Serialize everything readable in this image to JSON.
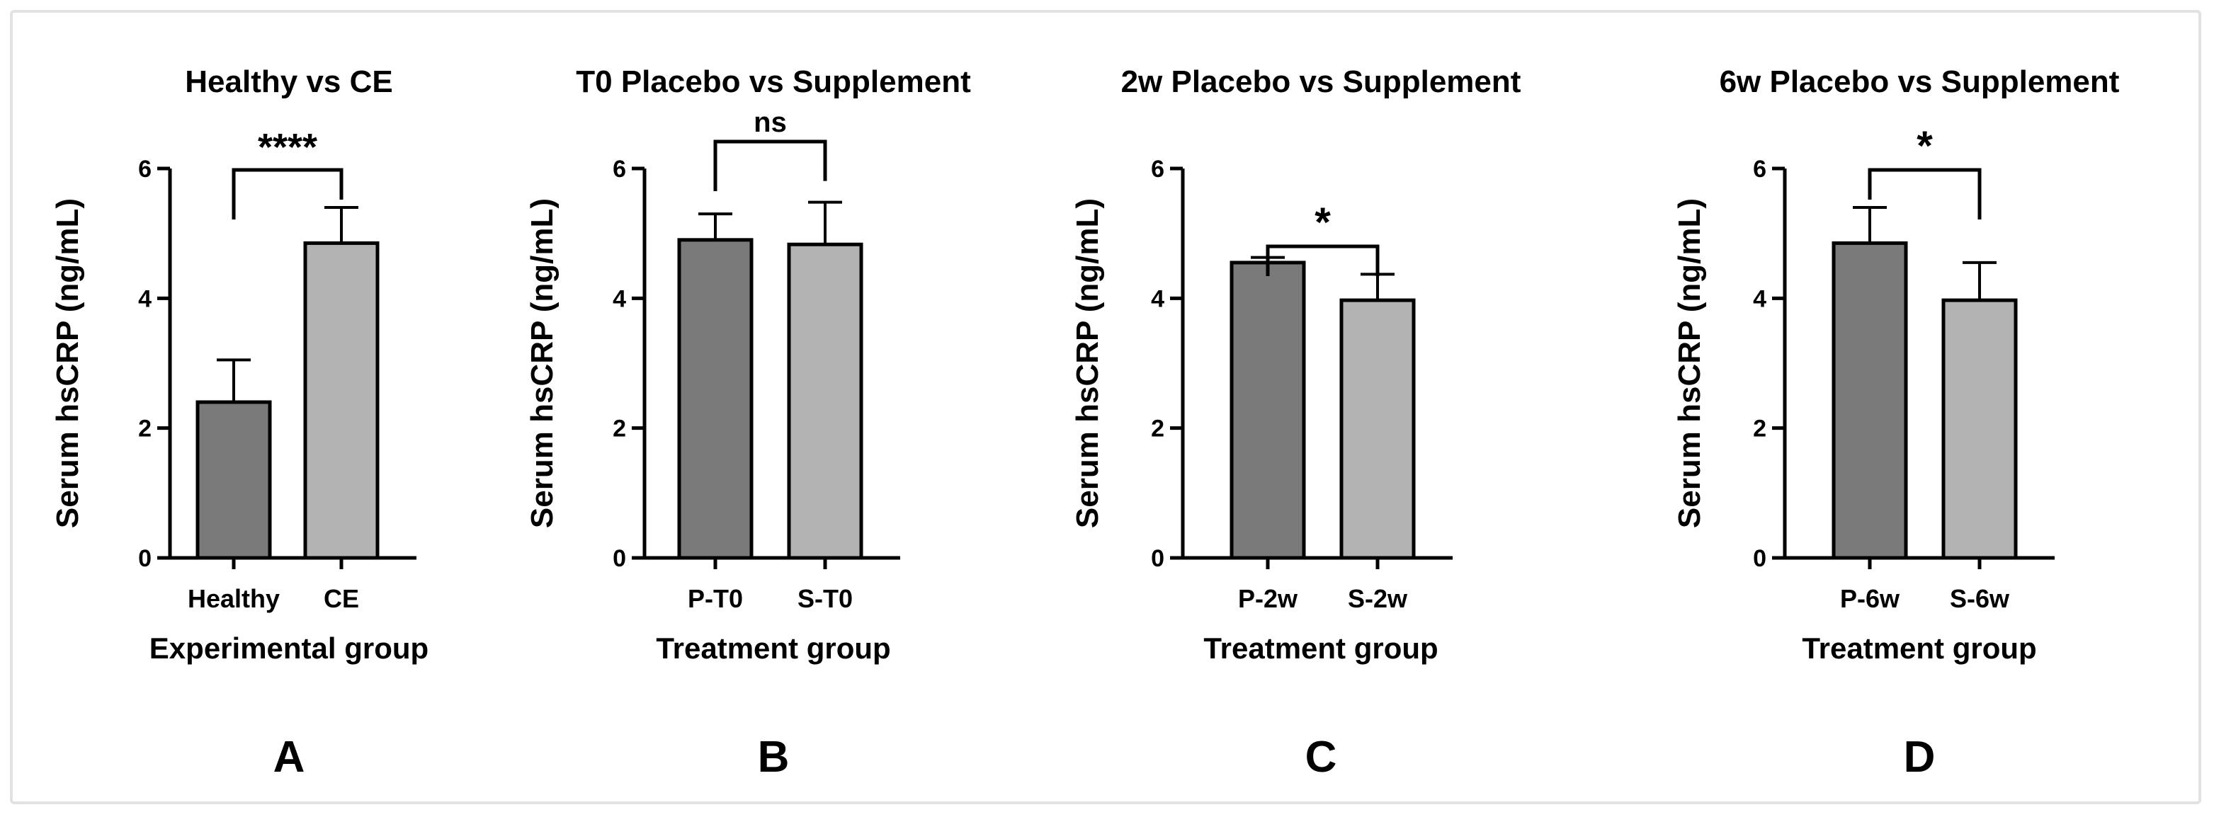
{
  "colors": {
    "bar_dark": "#7a7a7a",
    "bar_light": "#b3b3b3",
    "stroke": "#000000"
  },
  "chart_data": [
    {
      "panel_label": "A",
      "type": "bar",
      "title": "Healthy vs CE",
      "categories": [
        "Healthy",
        "CE"
      ],
      "values": [
        2.4,
        4.85
      ],
      "errors": [
        0.65,
        0.55
      ],
      "xlabel": "Experimental group",
      "ylabel": "Serum hsCRP (ng/mL)",
      "ylim": [
        0,
        6
      ],
      "yticks": [
        0,
        2,
        4,
        6
      ],
      "significance": "****"
    },
    {
      "panel_label": "B",
      "type": "bar",
      "title": "T0 Placebo vs Supplement",
      "categories": [
        "P-T0",
        "S-T0"
      ],
      "values": [
        4.9,
        4.83
      ],
      "errors": [
        0.4,
        0.65
      ],
      "xlabel": "Treatment group",
      "ylabel": "Serum hsCRP (ng/mL)",
      "ylim": [
        0,
        6
      ],
      "yticks": [
        0,
        2,
        4,
        6
      ],
      "significance": "ns"
    },
    {
      "panel_label": "C",
      "type": "bar",
      "title": "2w Placebo vs Supplement",
      "categories": [
        "P-2w",
        "S-2w"
      ],
      "values": [
        4.55,
        3.97
      ],
      "errors": [
        0.08,
        0.4
      ],
      "xlabel": "Treatment group",
      "ylabel": "Serum hsCRP (ng/mL)",
      "ylim": [
        0,
        6
      ],
      "yticks": [
        0,
        2,
        4,
        6
      ],
      "significance": "*"
    },
    {
      "panel_label": "D",
      "type": "bar",
      "title": "6w Placebo vs Supplement",
      "categories": [
        "P-6w",
        "S-6w"
      ],
      "values": [
        4.85,
        3.97
      ],
      "errors": [
        0.55,
        0.58
      ],
      "xlabel": "Treatment group",
      "ylabel": "Serum hsCRP (ng/mL)",
      "ylim": [
        0,
        6
      ],
      "yticks": [
        0,
        2,
        4,
        6
      ],
      "significance": "*"
    }
  ]
}
